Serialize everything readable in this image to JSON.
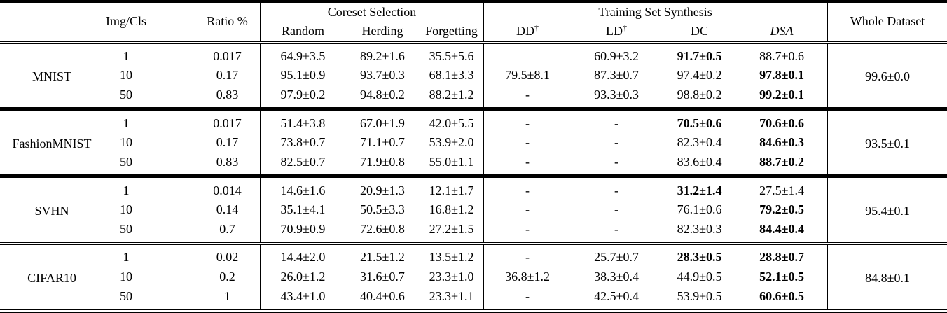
{
  "colors": {
    "text": "#000000",
    "background": "#ffffff",
    "rules": "#000000"
  },
  "table": {
    "header": {
      "dataset_col": "",
      "img_cls": "Img/Cls",
      "ratio": "Ratio %",
      "coreset_group": "Coreset Selection",
      "coreset_columns": [
        "Random",
        "Herding",
        "Forgetting"
      ],
      "synthesis_group": "Training Set Synthesis",
      "synthesis_columns": [
        {
          "text": "DD",
          "sup": "†",
          "italic": false
        },
        {
          "text": "LD",
          "sup": "†",
          "italic": false
        },
        {
          "text": "DC",
          "sup": "",
          "italic": false
        },
        {
          "text": "DSA",
          "sup": "",
          "italic": true
        }
      ],
      "whole_dataset": "Whole Dataset"
    },
    "groups": [
      {
        "dataset": "MNIST",
        "whole_dataset": "99.6±0.0",
        "rows": [
          {
            "img_cls": "1",
            "ratio": "0.017",
            "values": [
              {
                "t": "64.9±3.5"
              },
              {
                "t": "89.2±1.6"
              },
              {
                "t": "35.5±5.6"
              },
              {
                "t": ""
              },
              {
                "t": "60.9±3.2"
              },
              {
                "t": "91.7±0.5",
                "b": true
              },
              {
                "t": "88.7±0.6"
              }
            ]
          },
          {
            "img_cls": "10",
            "ratio": "0.17",
            "values": [
              {
                "t": "95.1±0.9"
              },
              {
                "t": "93.7±0.3"
              },
              {
                "t": "68.1±3.3"
              },
              {
                "t": "79.5±8.1"
              },
              {
                "t": "87.3±0.7"
              },
              {
                "t": "97.4±0.2"
              },
              {
                "t": "97.8±0.1",
                "b": true
              }
            ]
          },
          {
            "img_cls": "50",
            "ratio": "0.83",
            "values": [
              {
                "t": "97.9±0.2"
              },
              {
                "t": "94.8±0.2"
              },
              {
                "t": "88.2±1.2"
              },
              {
                "t": "-"
              },
              {
                "t": "93.3±0.3"
              },
              {
                "t": "98.8±0.2"
              },
              {
                "t": "99.2±0.1",
                "b": true
              }
            ]
          }
        ]
      },
      {
        "dataset": "FashionMNIST",
        "whole_dataset": "93.5±0.1",
        "rows": [
          {
            "img_cls": "1",
            "ratio": "0.017",
            "values": [
              {
                "t": "51.4±3.8"
              },
              {
                "t": "67.0±1.9"
              },
              {
                "t": "42.0±5.5"
              },
              {
                "t": "-"
              },
              {
                "t": "-"
              },
              {
                "t": "70.5±0.6",
                "b": true
              },
              {
                "t": "70.6±0.6",
                "b": true
              }
            ]
          },
          {
            "img_cls": "10",
            "ratio": "0.17",
            "values": [
              {
                "t": "73.8±0.7"
              },
              {
                "t": "71.1±0.7"
              },
              {
                "t": "53.9±2.0"
              },
              {
                "t": "-"
              },
              {
                "t": "-"
              },
              {
                "t": "82.3±0.4"
              },
              {
                "t": "84.6±0.3",
                "b": true
              }
            ]
          },
          {
            "img_cls": "50",
            "ratio": "0.83",
            "values": [
              {
                "t": "82.5±0.7"
              },
              {
                "t": "71.9±0.8"
              },
              {
                "t": "55.0±1.1"
              },
              {
                "t": "-"
              },
              {
                "t": "-"
              },
              {
                "t": "83.6±0.4"
              },
              {
                "t": "88.7±0.2",
                "b": true
              }
            ]
          }
        ]
      },
      {
        "dataset": "SVHN",
        "whole_dataset": "95.4±0.1",
        "rows": [
          {
            "img_cls": "1",
            "ratio": "0.014",
            "values": [
              {
                "t": "14.6±1.6"
              },
              {
                "t": "20.9±1.3"
              },
              {
                "t": "12.1±1.7"
              },
              {
                "t": "-"
              },
              {
                "t": "-"
              },
              {
                "t": "31.2±1.4",
                "b": true
              },
              {
                "t": "27.5±1.4"
              }
            ]
          },
          {
            "img_cls": "10",
            "ratio": "0.14",
            "values": [
              {
                "t": "35.1±4.1"
              },
              {
                "t": "50.5±3.3"
              },
              {
                "t": "16.8±1.2"
              },
              {
                "t": "-"
              },
              {
                "t": "-"
              },
              {
                "t": "76.1±0.6"
              },
              {
                "t": "79.2±0.5",
                "b": true
              }
            ]
          },
          {
            "img_cls": "50",
            "ratio": "0.7",
            "values": [
              {
                "t": "70.9±0.9"
              },
              {
                "t": "72.6±0.8"
              },
              {
                "t": "27.2±1.5"
              },
              {
                "t": "-"
              },
              {
                "t": "-"
              },
              {
                "t": "82.3±0.3"
              },
              {
                "t": "84.4±0.4",
                "b": true
              }
            ]
          }
        ]
      },
      {
        "dataset": "CIFAR10",
        "whole_dataset": "84.8±0.1",
        "rows": [
          {
            "img_cls": "1",
            "ratio": "0.02",
            "values": [
              {
                "t": "14.4±2.0"
              },
              {
                "t": "21.5±1.2"
              },
              {
                "t": "13.5±1.2"
              },
              {
                "t": "-"
              },
              {
                "t": "25.7±0.7"
              },
              {
                "t": "28.3±0.5",
                "b": true
              },
              {
                "t": "28.8±0.7",
                "b": true
              }
            ]
          },
          {
            "img_cls": "10",
            "ratio": "0.2",
            "values": [
              {
                "t": "26.0±1.2"
              },
              {
                "t": "31.6±0.7"
              },
              {
                "t": "23.3±1.0"
              },
              {
                "t": "36.8±1.2"
              },
              {
                "t": "38.3±0.4"
              },
              {
                "t": "44.9±0.5"
              },
              {
                "t": "52.1±0.5",
                "b": true
              }
            ]
          },
          {
            "img_cls": "50",
            "ratio": "1",
            "values": [
              {
                "t": "43.4±1.0"
              },
              {
                "t": "40.4±0.6"
              },
              {
                "t": "23.3±1.1"
              },
              {
                "t": "-"
              },
              {
                "t": "42.5±0.4"
              },
              {
                "t": "53.9±0.5"
              },
              {
                "t": "60.6±0.5",
                "b": true
              }
            ]
          }
        ]
      }
    ]
  }
}
